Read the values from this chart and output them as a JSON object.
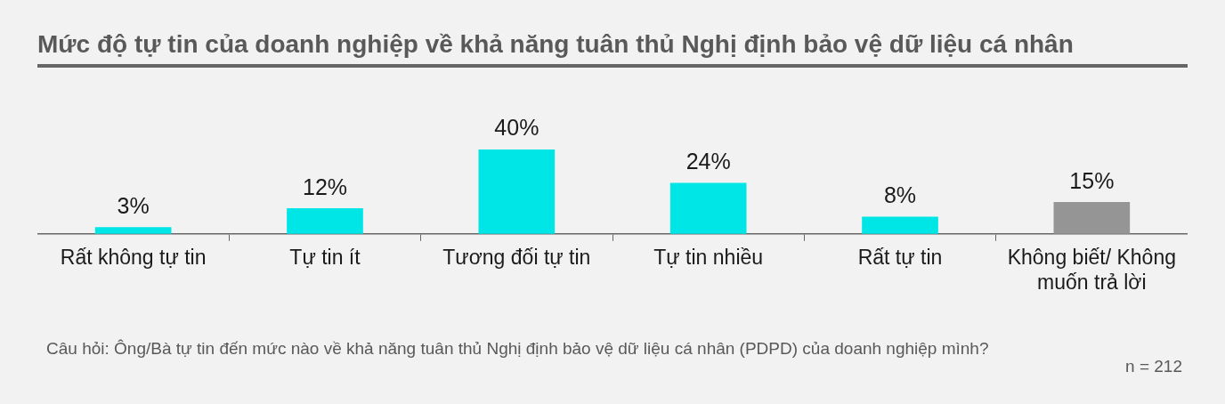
{
  "chart_data": {
    "type": "bar",
    "title": "Mức độ tự tin của doanh nghiệp về khả năng tuân thủ Nghị định bảo vệ dữ liệu cá nhân",
    "categories": [
      "Rất không tự tin",
      "Tự tin ít",
      "Tương đối tự tin",
      "Tự tin nhiều",
      "Rất tự tin",
      "Không biết/ Không muốn trả lời"
    ],
    "values": [
      3,
      12,
      40,
      24,
      8,
      15
    ],
    "value_labels": [
      "3%",
      "12%",
      "40%",
      "24%",
      "8%",
      "15%"
    ],
    "colors": [
      "#00e6e6",
      "#00e6e6",
      "#00e6e6",
      "#00e6e6",
      "#00e6e6",
      "#959595"
    ],
    "tick_labels": "x",
    "annotations": [
      "Câu hỏi: Ông/Bà tự tin đến mức nào về khả năng tuân thủ Nghị định bảo vệ dữ liệu cá nhân (PDPD) của doanh nghiệp mình?",
      "n = 212"
    ]
  }
}
